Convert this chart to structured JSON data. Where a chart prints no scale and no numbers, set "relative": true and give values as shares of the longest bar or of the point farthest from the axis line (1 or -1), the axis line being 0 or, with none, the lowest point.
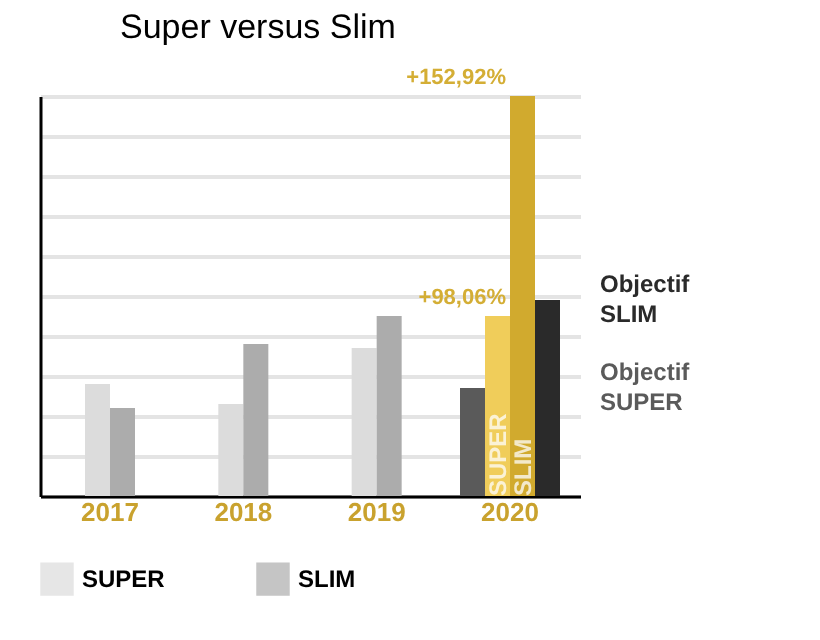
{
  "chart_data": {
    "type": "bar",
    "title": "Super versus Slim",
    "relative": true,
    "grid": "y",
    "legend": "bottom",
    "categories": [
      "2017",
      "2018",
      "2019",
      "2020"
    ],
    "series": [
      {
        "name": "Objectif SUPER",
        "color": "#5a5a5a",
        "values": [
          null,
          null,
          null,
          0.27
        ]
      },
      {
        "name": "SUPER",
        "colors": [
          "#dcdcdc",
          "#dcdcdc",
          "#dcdcdc",
          "#f0cd5a"
        ],
        "values": [
          0.28,
          0.23,
          0.37,
          0.45
        ]
      },
      {
        "name": "SLIM",
        "colors": [
          "#acacac",
          "#acacac",
          "#acacac",
          "#d1aa2e"
        ],
        "values": [
          0.22,
          0.38,
          0.45,
          1.0
        ]
      },
      {
        "name": "Objectif SLIM",
        "color": "#2a2a2a",
        "values": [
          null,
          null,
          null,
          0.49
        ]
      }
    ],
    "annotations": [
      {
        "text": "+152,92%",
        "x": "2020",
        "y": 1.0
      },
      {
        "text": "+98,06%",
        "x": "2020",
        "y": 0.45
      }
    ]
  }
}
